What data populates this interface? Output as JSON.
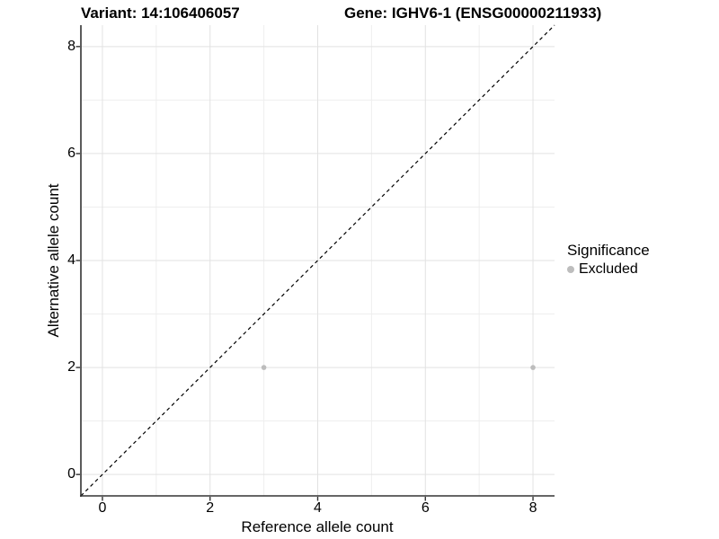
{
  "titles": {
    "variant": "Variant: 14:106406057",
    "gene": "Gene: IGHV6-1 (ENSG00000211933)"
  },
  "legend": {
    "title": "Significance",
    "items": [
      {
        "label": "Excluded",
        "color": "#bdbdbd"
      }
    ]
  },
  "colors": {
    "background": "#ffffff",
    "axis_line": "#333333",
    "tick_mark": "#333333",
    "grid_major": "#e2e2e2",
    "grid_minor": "#eeeeee",
    "point": "#bdbdbd",
    "reference_line": "#000000",
    "text": "#000000"
  },
  "chart_data": {
    "type": "scatter",
    "title": "Variant: 14:106406057    Gene: IGHV6-1 (ENSG00000211933)",
    "xlabel": "Reference allele count",
    "ylabel": "Alternative allele count",
    "xlim": [
      -0.4,
      8.4
    ],
    "ylim": [
      -0.4,
      8.4
    ],
    "x_ticks": [
      0,
      2,
      4,
      6,
      8
    ],
    "y_ticks": [
      0,
      2,
      4,
      6,
      8
    ],
    "grid": "on",
    "grid_minor_x": [
      1,
      3,
      5,
      7
    ],
    "grid_minor_y": [
      1,
      3,
      5,
      7
    ],
    "legend_position": "right",
    "series": [
      {
        "name": "Excluded",
        "color": "#bdbdbd",
        "points": [
          [
            3,
            2
          ],
          [
            8,
            2
          ]
        ]
      }
    ],
    "reference_line": {
      "type": "identity y=x",
      "style": "dashed",
      "color": "#000000",
      "from": [
        -0.4,
        -0.4
      ],
      "to": [
        8.4,
        8.4
      ]
    }
  }
}
